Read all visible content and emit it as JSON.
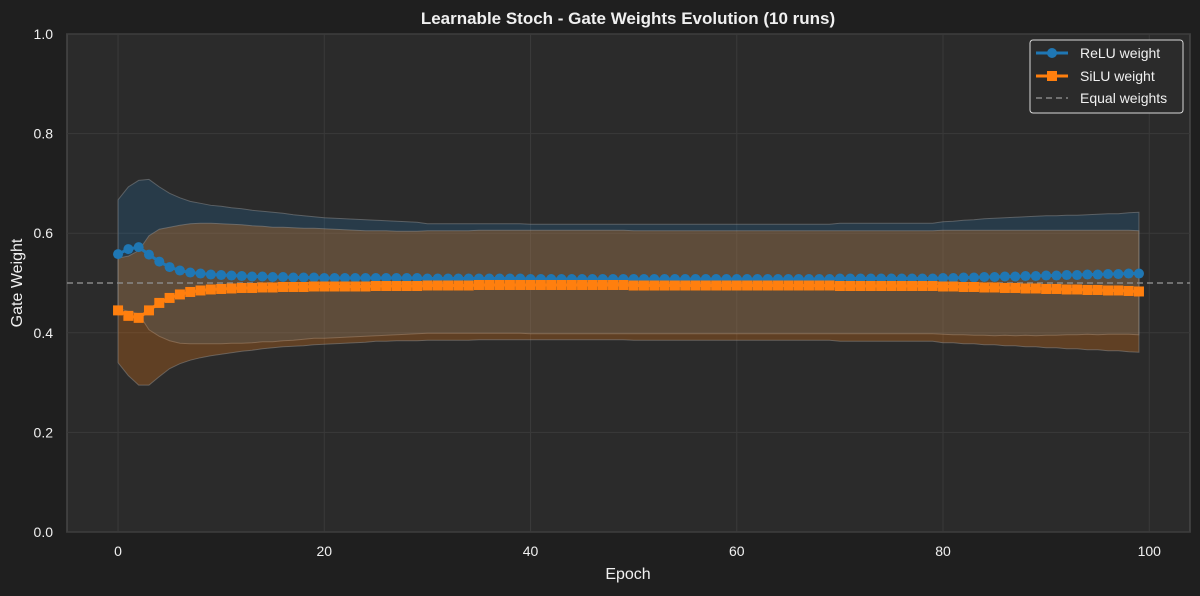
{
  "chart_data": {
    "type": "line",
    "title": "Learnable Stoch - Gate Weights Evolution (10 runs)",
    "xlabel": "Epoch",
    "ylabel": "Gate Weight",
    "xlim": [
      -4.95,
      103.95
    ],
    "ylim": [
      0,
      1.0
    ],
    "xticks": [
      "0",
      "20",
      "40",
      "60",
      "80",
      "100"
    ],
    "yticks": [
      "0.0",
      "0.2",
      "0.4",
      "0.6",
      "0.8",
      "1.0"
    ],
    "grid": true,
    "legend_position": "top-right",
    "reference_line": {
      "name": "Equal weights",
      "y": 0.5,
      "color": "#888888"
    },
    "series": [
      {
        "name": "ReLU weight",
        "color": "#1f77b4",
        "marker": "circle",
        "mean": [
          0.558,
          0.568,
          0.572,
          0.557,
          0.543,
          0.532,
          0.525,
          0.521,
          0.519,
          0.517,
          0.516,
          0.515,
          0.514,
          0.513,
          0.513,
          0.512,
          0.512,
          0.511,
          0.511,
          0.511,
          0.51,
          0.51,
          0.51,
          0.51,
          0.51,
          0.51,
          0.51,
          0.51,
          0.51,
          0.51,
          0.509,
          0.509,
          0.509,
          0.509,
          0.509,
          0.509,
          0.509,
          0.509,
          0.509,
          0.509,
          0.508,
          0.508,
          0.508,
          0.508,
          0.508,
          0.508,
          0.508,
          0.508,
          0.508,
          0.508,
          0.508,
          0.508,
          0.508,
          0.508,
          0.508,
          0.508,
          0.508,
          0.508,
          0.508,
          0.508,
          0.508,
          0.508,
          0.508,
          0.508,
          0.508,
          0.508,
          0.508,
          0.508,
          0.508,
          0.508,
          0.509,
          0.509,
          0.509,
          0.509,
          0.509,
          0.509,
          0.509,
          0.509,
          0.509,
          0.509,
          0.51,
          0.51,
          0.511,
          0.511,
          0.512,
          0.512,
          0.513,
          0.513,
          0.514,
          0.514,
          0.515,
          0.515,
          0.516,
          0.516,
          0.517,
          0.517,
          0.518,
          0.518,
          0.519,
          0.519
        ],
        "std": [
          0.109,
          0.125,
          0.134,
          0.151,
          0.15,
          0.148,
          0.146,
          0.143,
          0.141,
          0.139,
          0.138,
          0.136,
          0.135,
          0.133,
          0.131,
          0.13,
          0.128,
          0.126,
          0.124,
          0.122,
          0.121,
          0.12,
          0.119,
          0.118,
          0.117,
          0.116,
          0.115,
          0.114,
          0.113,
          0.112,
          0.11,
          0.11,
          0.11,
          0.11,
          0.11,
          0.11,
          0.11,
          0.11,
          0.11,
          0.11,
          0.11,
          0.11,
          0.11,
          0.11,
          0.11,
          0.11,
          0.11,
          0.11,
          0.11,
          0.11,
          0.11,
          0.11,
          0.11,
          0.11,
          0.11,
          0.11,
          0.11,
          0.11,
          0.11,
          0.11,
          0.11,
          0.11,
          0.11,
          0.11,
          0.11,
          0.11,
          0.11,
          0.11,
          0.11,
          0.11,
          0.111,
          0.111,
          0.111,
          0.111,
          0.111,
          0.111,
          0.111,
          0.111,
          0.111,
          0.111,
          0.113,
          0.114,
          0.115,
          0.116,
          0.117,
          0.118,
          0.118,
          0.119,
          0.119,
          0.12,
          0.12,
          0.12,
          0.12,
          0.12,
          0.12,
          0.121,
          0.121,
          0.121,
          0.122,
          0.123
        ]
      },
      {
        "name": "SiLU weight",
        "color": "#ff7f0e",
        "marker": "square",
        "mean": [
          0.445,
          0.434,
          0.43,
          0.445,
          0.46,
          0.47,
          0.477,
          0.482,
          0.485,
          0.487,
          0.488,
          0.489,
          0.49,
          0.49,
          0.491,
          0.491,
          0.492,
          0.492,
          0.492,
          0.493,
          0.493,
          0.493,
          0.493,
          0.493,
          0.493,
          0.494,
          0.494,
          0.494,
          0.494,
          0.494,
          0.495,
          0.495,
          0.495,
          0.495,
          0.495,
          0.496,
          0.496,
          0.496,
          0.496,
          0.496,
          0.496,
          0.496,
          0.496,
          0.496,
          0.496,
          0.496,
          0.496,
          0.496,
          0.496,
          0.496,
          0.495,
          0.495,
          0.495,
          0.495,
          0.495,
          0.495,
          0.495,
          0.495,
          0.495,
          0.495,
          0.495,
          0.495,
          0.495,
          0.495,
          0.495,
          0.495,
          0.495,
          0.495,
          0.495,
          0.495,
          0.494,
          0.494,
          0.494,
          0.494,
          0.494,
          0.494,
          0.494,
          0.494,
          0.494,
          0.494,
          0.493,
          0.493,
          0.492,
          0.492,
          0.491,
          0.491,
          0.49,
          0.49,
          0.489,
          0.489,
          0.488,
          0.488,
          0.487,
          0.487,
          0.486,
          0.486,
          0.485,
          0.485,
          0.484,
          0.483
        ],
        "std": [
          0.105,
          0.12,
          0.135,
          0.15,
          0.148,
          0.142,
          0.139,
          0.137,
          0.135,
          0.133,
          0.131,
          0.129,
          0.127,
          0.125,
          0.123,
          0.121,
          0.12,
          0.119,
          0.118,
          0.117,
          0.116,
          0.115,
          0.114,
          0.113,
          0.112,
          0.111,
          0.111,
          0.11,
          0.11,
          0.11,
          0.11,
          0.11,
          0.11,
          0.11,
          0.11,
          0.11,
          0.11,
          0.11,
          0.11,
          0.11,
          0.11,
          0.11,
          0.11,
          0.11,
          0.11,
          0.11,
          0.11,
          0.11,
          0.11,
          0.11,
          0.11,
          0.11,
          0.11,
          0.11,
          0.11,
          0.11,
          0.11,
          0.11,
          0.11,
          0.11,
          0.11,
          0.11,
          0.11,
          0.11,
          0.11,
          0.11,
          0.11,
          0.11,
          0.11,
          0.11,
          0.111,
          0.111,
          0.111,
          0.111,
          0.111,
          0.111,
          0.111,
          0.111,
          0.111,
          0.111,
          0.113,
          0.113,
          0.114,
          0.114,
          0.115,
          0.115,
          0.116,
          0.116,
          0.117,
          0.117,
          0.118,
          0.118,
          0.119,
          0.119,
          0.12,
          0.12,
          0.121,
          0.121,
          0.122,
          0.122
        ]
      }
    ]
  }
}
